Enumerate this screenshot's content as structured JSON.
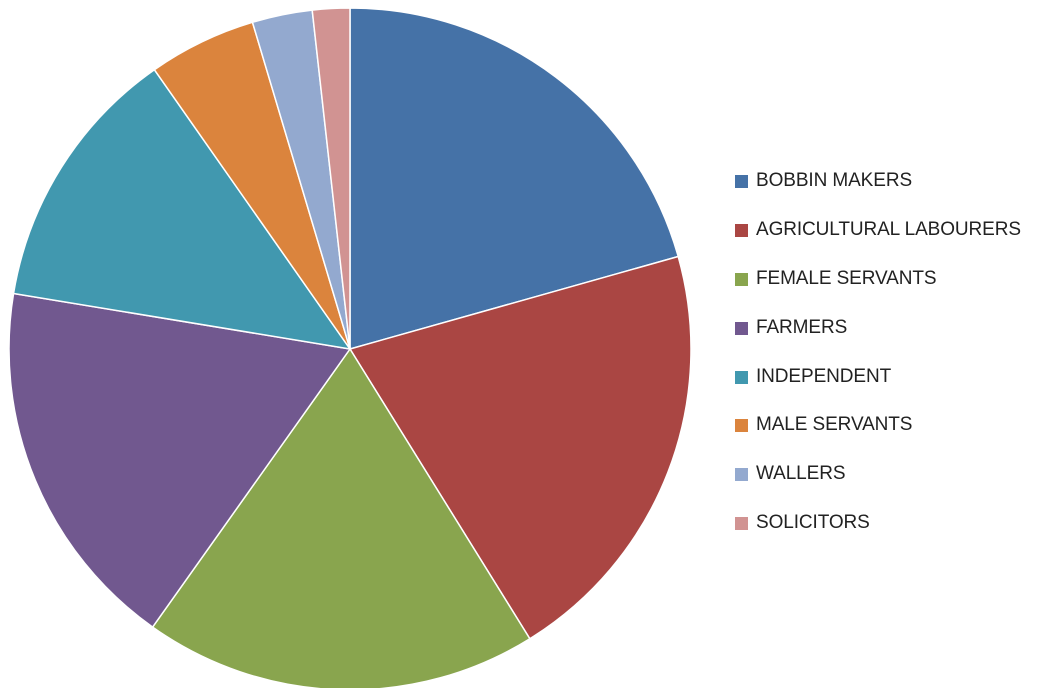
{
  "chart_data": {
    "type": "pie",
    "title": "",
    "legend_position": "right",
    "start_angle_deg": 0,
    "direction": "clockwise",
    "categories": [
      "BOBBIN MAKERS",
      "AGRICULTURAL LABOURERS",
      "FEMALE SERVANTS",
      "FARMERS",
      "INDEPENDENT",
      "MALE SERVANTS",
      "WALLERS",
      "SOLICITORS"
    ],
    "values": [
      21.0,
      20.9,
      19.0,
      18.1,
      12.9,
      5.2,
      2.9,
      1.8
    ],
    "colors": [
      "#4572A7",
      "#AA4643",
      "#89A54E",
      "#71588F",
      "#4198AF",
      "#DB843D",
      "#93A9CF",
      "#D19392"
    ]
  }
}
